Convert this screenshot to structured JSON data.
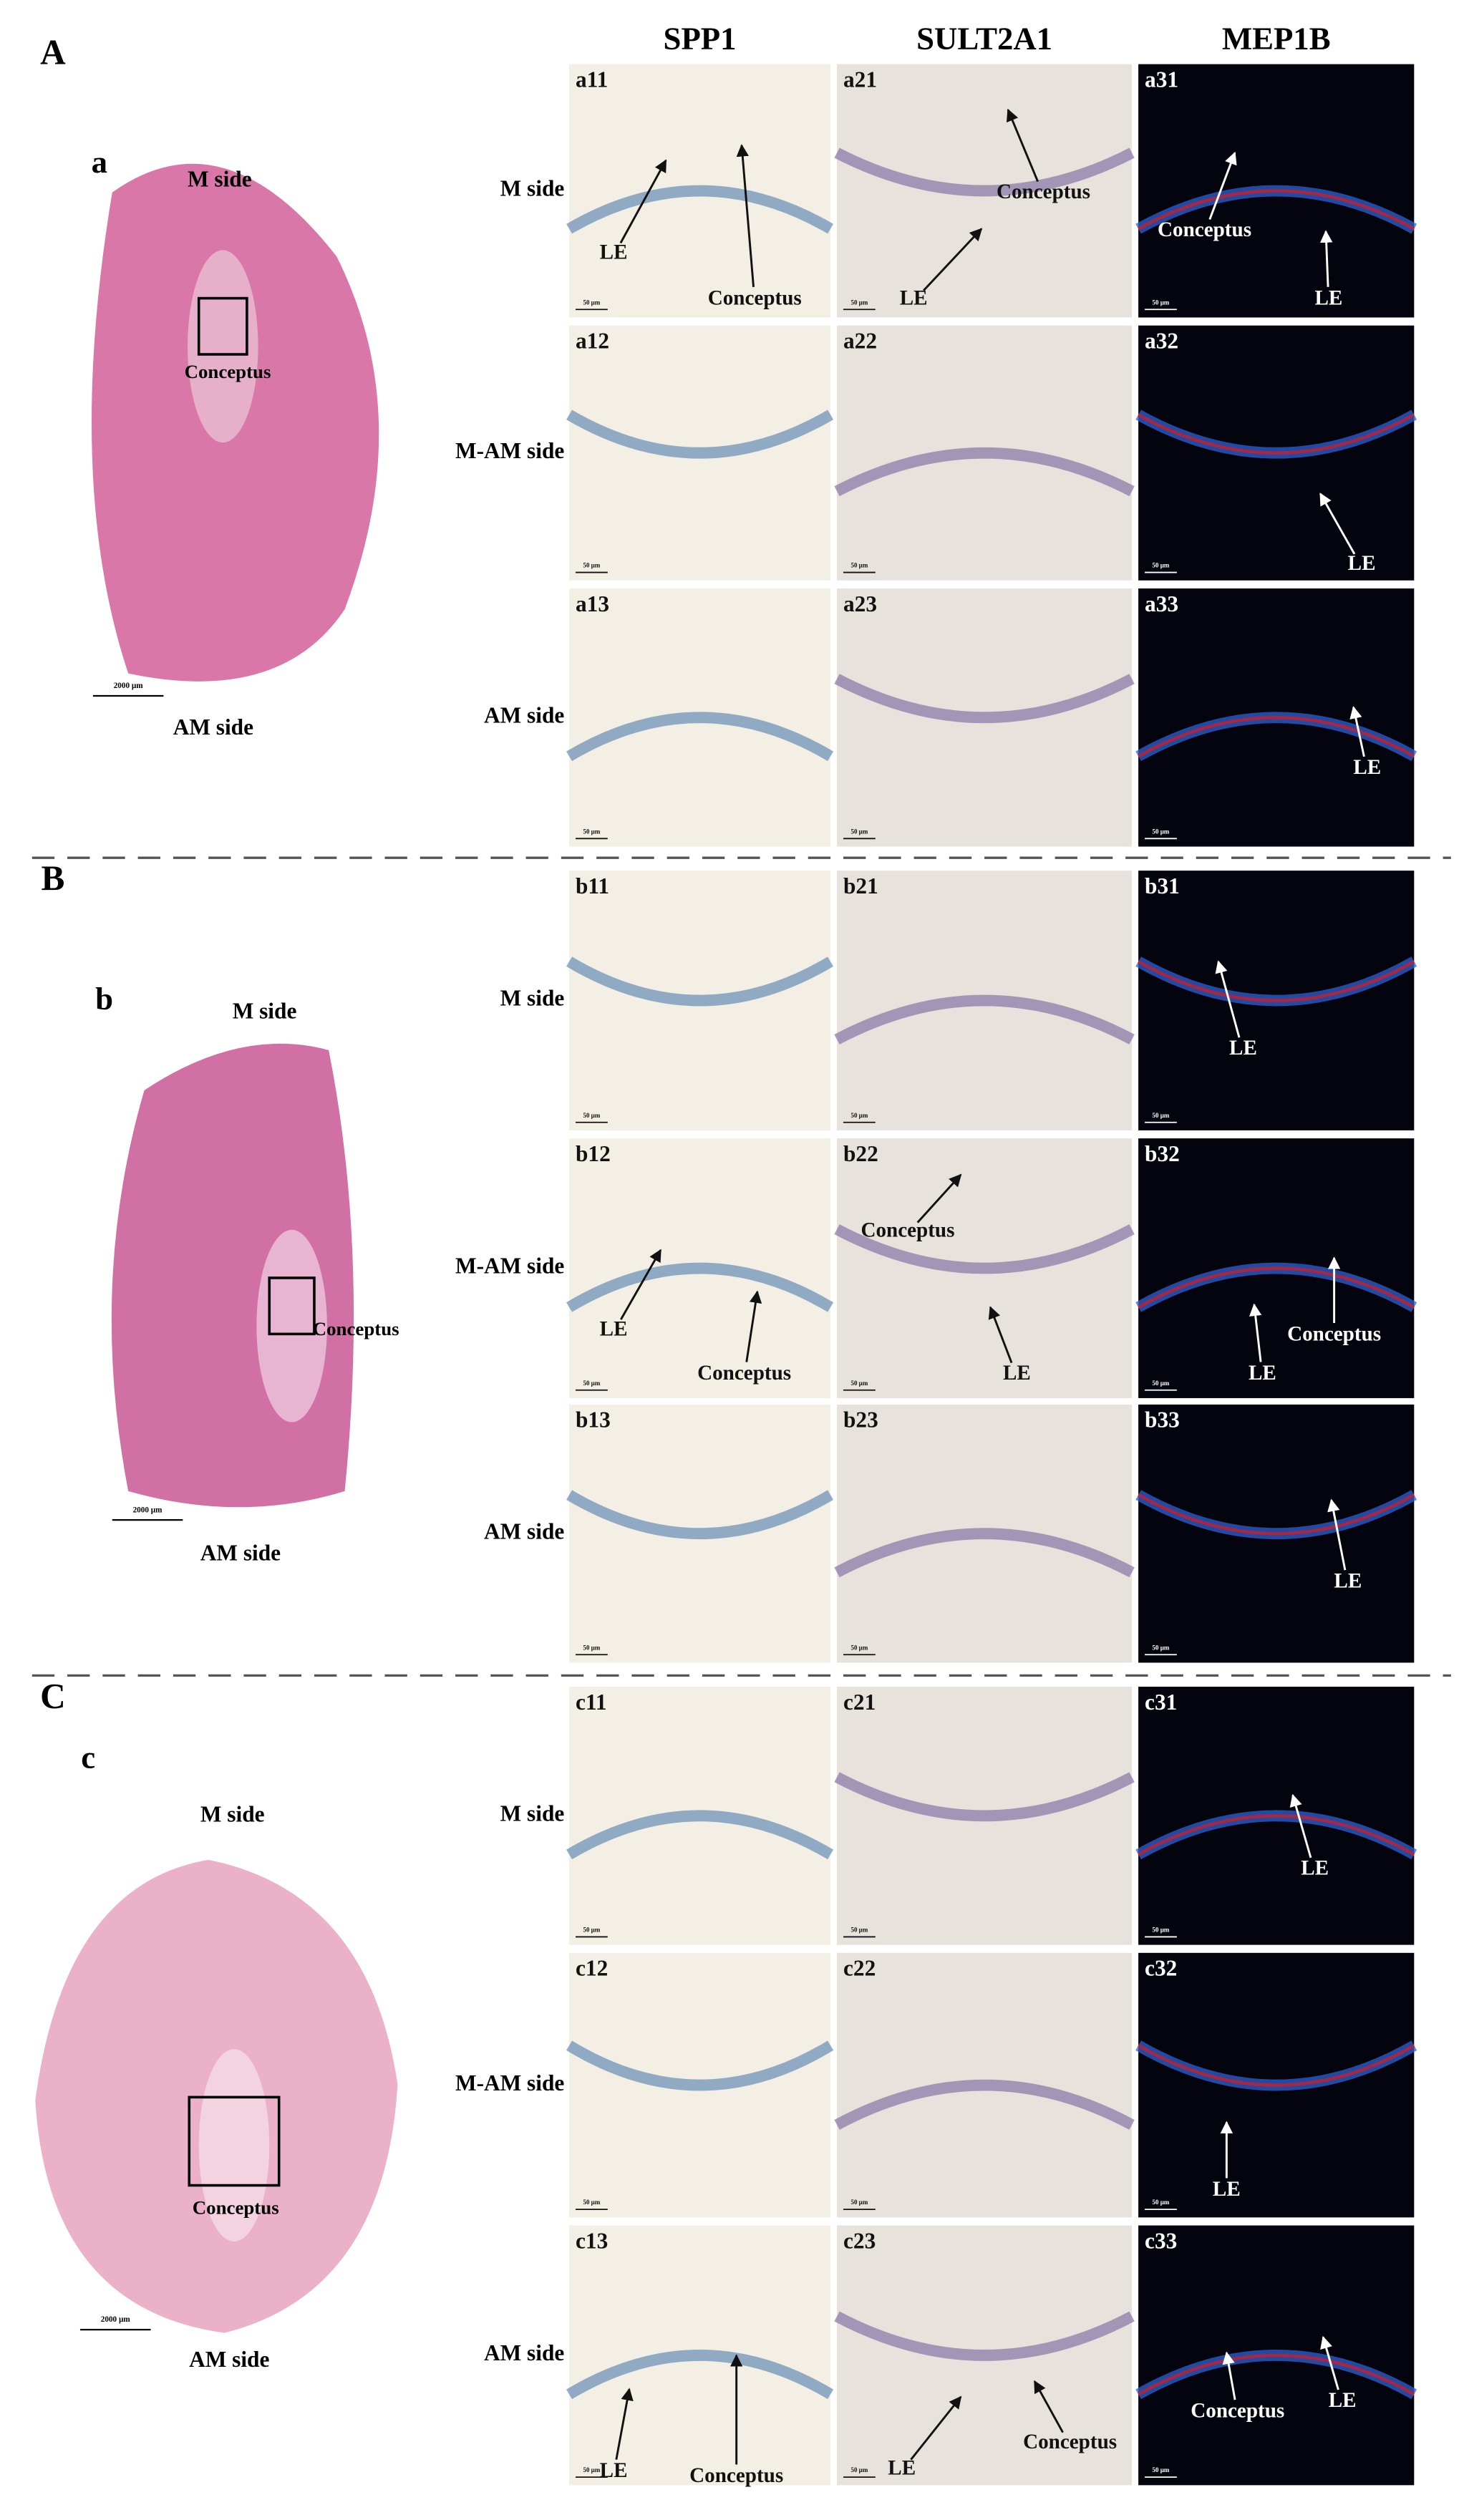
{
  "columns": [
    "SPP1",
    "SULT2A1",
    "MEP1B"
  ],
  "panel_scale": "50 µm",
  "sections": [
    {
      "letter": "A",
      "label": "a",
      "top": "M side",
      "bottom": "AM side",
      "box": "Conceptus",
      "scale": "2000 µm",
      "rows": [
        {
          "label": "M side",
          "panels": [
            {
              "id": "a11",
              "notes": [
                "LE",
                "Conceptus"
              ]
            },
            {
              "id": "a21",
              "notes": [
                "Conceptus",
                "LE"
              ]
            },
            {
              "id": "a31",
              "notes": [
                "Conceptus",
                "LE"
              ]
            }
          ]
        },
        {
          "label": "M-AM side",
          "panels": [
            {
              "id": "a12"
            },
            {
              "id": "a22"
            },
            {
              "id": "a32",
              "notes": [
                "LE"
              ]
            }
          ]
        },
        {
          "label": "AM side",
          "panels": [
            {
              "id": "a13"
            },
            {
              "id": "a23"
            },
            {
              "id": "a33",
              "notes": [
                "LE"
              ]
            }
          ]
        }
      ]
    },
    {
      "letter": "B",
      "label": "b",
      "top": "M side",
      "bottom": "AM side",
      "box": "Conceptus",
      "scale": "2000 µm",
      "rows": [
        {
          "label": "M side",
          "panels": [
            {
              "id": "b11"
            },
            {
              "id": "b21"
            },
            {
              "id": "b31",
              "notes": [
                "LE"
              ]
            }
          ]
        },
        {
          "label": "M-AM side",
          "panels": [
            {
              "id": "b12",
              "notes": [
                "LE",
                "Conceptus"
              ]
            },
            {
              "id": "b22",
              "notes": [
                "Conceptus",
                "LE"
              ]
            },
            {
              "id": "b32",
              "notes": [
                "Conceptus",
                "LE"
              ]
            }
          ]
        },
        {
          "label": "AM side",
          "panels": [
            {
              "id": "b13"
            },
            {
              "id": "b23"
            },
            {
              "id": "b33",
              "notes": [
                "LE"
              ]
            }
          ]
        }
      ]
    },
    {
      "letter": "C",
      "label": "c",
      "top": "M side",
      "bottom": "AM side",
      "box": "Conceptus",
      "scale": "2000 µm",
      "rows": [
        {
          "label": "M side",
          "panels": [
            {
              "id": "c11"
            },
            {
              "id": "c21"
            },
            {
              "id": "c31",
              "notes": [
                "LE"
              ]
            }
          ]
        },
        {
          "label": "M-AM side",
          "panels": [
            {
              "id": "c12"
            },
            {
              "id": "c22"
            },
            {
              "id": "c32",
              "notes": [
                "LE"
              ]
            }
          ]
        },
        {
          "label": "AM side",
          "panels": [
            {
              "id": "c13",
              "notes": [
                "LE",
                "Conceptus"
              ]
            },
            {
              "id": "c23",
              "notes": [
                "LE",
                "Conceptus"
              ]
            },
            {
              "id": "c33",
              "notes": [
                "Conceptus",
                "LE"
              ]
            }
          ]
        }
      ]
    }
  ]
}
